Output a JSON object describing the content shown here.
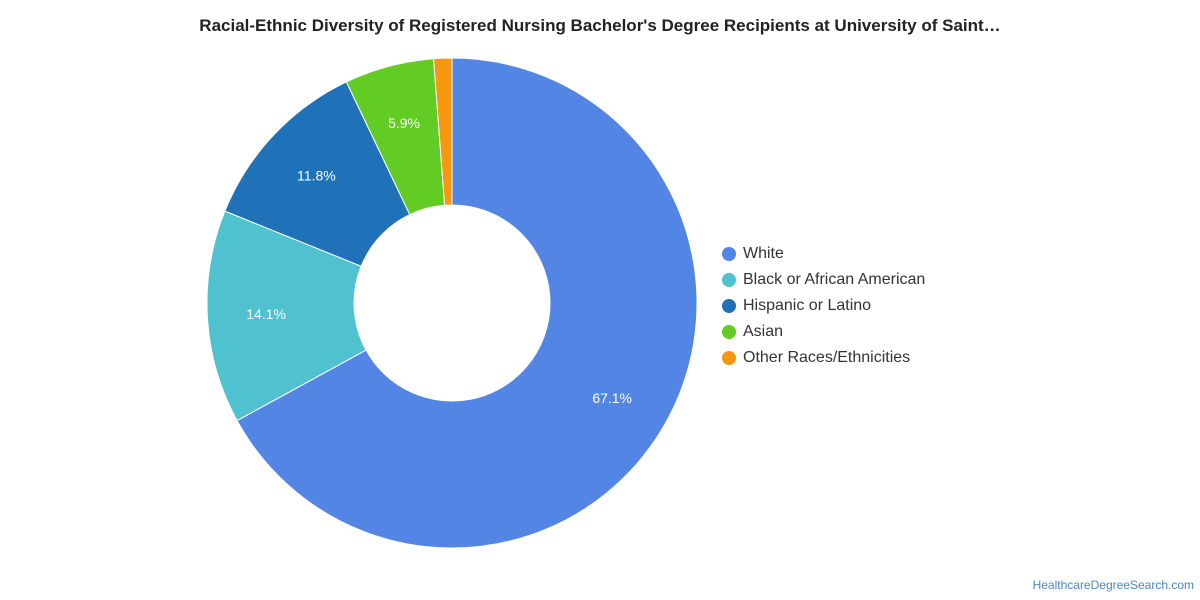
{
  "chart_data": {
    "type": "pie",
    "title": "Racial-Ethnic Diversity of Registered Nursing Bachelor's Degree Recipients at University of Saint…",
    "donut": true,
    "legend_position": "right",
    "categories": [
      "White",
      "Black or African American",
      "Hispanic or Latino",
      "Asian",
      "Other Races/Ethnicities"
    ],
    "values": [
      67.1,
      14.1,
      11.8,
      5.9,
      1.2
    ],
    "data_labels": [
      "67.1%",
      "14.1%",
      "11.8%",
      "5.9%",
      ""
    ],
    "colors": [
      "#5386e4",
      "#4fc1cf",
      "#1f72b8",
      "#62cc25",
      "#f7960f"
    ]
  },
  "source": "HealthcareDegreeSearch.com"
}
